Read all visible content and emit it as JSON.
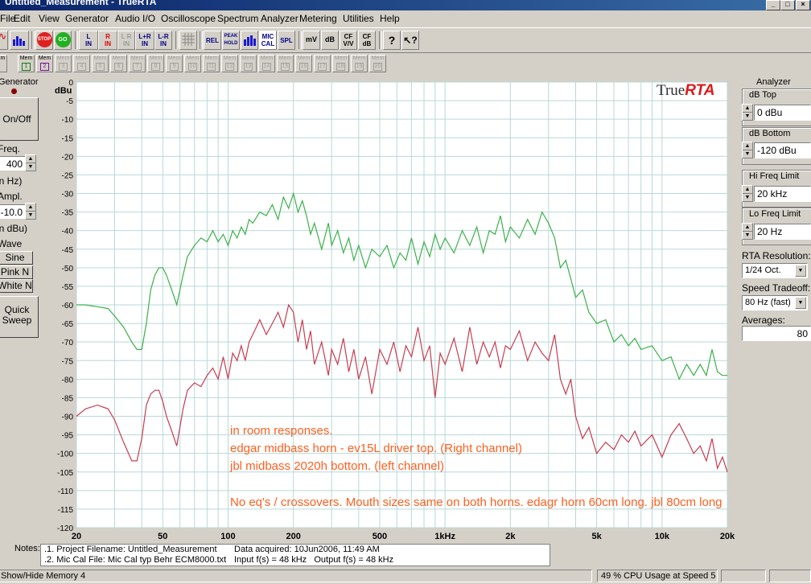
{
  "window": {
    "title": "Untitled_Measurement - TrueRTA"
  },
  "menu": [
    "File",
    "Edit",
    "View",
    "Generator",
    "Audio I/O",
    "Oscilloscope",
    "Spectrum Analyzer",
    "Metering",
    "Utilities",
    "Help"
  ],
  "toolbar": {
    "stop": "STOP",
    "go": "GO",
    "l_in": "L\nIN",
    "r_in": "R\nIN",
    "lr_in": "L R\nIN",
    "lpr_in": "L+R\nIN",
    "lmr_in": "L-R\nIN",
    "rel": "REL",
    "peak_hold": "PEAK\nHOLD",
    "mic_cal": "MIC\nCAL",
    "spl": "SPL",
    "mv": "mV",
    "db": "dB",
    "cf_vv": "CF\nV/V",
    "cf_db": "CF\ndB"
  },
  "memory": {
    "label": "Mem",
    "slots": [
      "1",
      "2",
      "3",
      "4",
      "5",
      "6",
      "7",
      "8",
      "9",
      "10",
      "11",
      "12",
      "13",
      "14",
      "15",
      "16",
      "17",
      "18",
      "19",
      "20"
    ]
  },
  "generator": {
    "title": "Generator",
    "on_off": "On/Off",
    "freq_label": "Freq.",
    "freq_value": "400",
    "freq_unit": "(in Hz)",
    "ampl_label": "Ampl.",
    "ampl_value": "-10.0",
    "ampl_unit": "(in dBu)",
    "wave_label": "Wave",
    "waves": [
      "Sine",
      "Pink N",
      "White N"
    ],
    "quick_sweep": "Quick\nSweep"
  },
  "analyzer": {
    "title": "Analyzer",
    "db_top_label": "dB Top",
    "db_top": "0 dBu",
    "db_bottom_label": "dB Bottom",
    "db_bottom": "-120 dBu",
    "hi_freq_label": "Hi Freq Limit",
    "hi_freq": "20 kHz",
    "lo_freq_label": "Lo Freq Limit",
    "lo_freq": "20 Hz",
    "resolution_label": "RTA Resolution:",
    "resolution": "1/24 Oct.",
    "speed_label": "Speed Tradeoff:",
    "speed": "80 Hz (fast)",
    "averages_label": "Averages:",
    "averages": "80"
  },
  "notes": {
    "label": "Notes:",
    "line1": ".1. Project Filename: Untitled_Measurement",
    "line2": ".2. Mic Cal File: Mic Cal typ Behr ECM8000.txt",
    "acquired": "Data acquired: 10Jun2006, 11:49 AM",
    "input": "Input f(s) = 48 kHz   Output f(s) = 48 kHz"
  },
  "status": {
    "left": "Show/Hide Memory 4",
    "cpu": "49 % CPU Usage at Speed 5"
  },
  "colors": {
    "grid": "#b8d9d8",
    "plot_bg": "#ffffff",
    "green": "#3cb04a",
    "red": "#c83c50",
    "annotation": "#ff6020",
    "logo_red": "#e01818"
  },
  "chart_data": {
    "type": "line",
    "ylabel": "dBu",
    "logo": "TrueRTA",
    "x_scale": "log",
    "xlim": [
      20,
      20000
    ],
    "ylim": [
      -120,
      0
    ],
    "grid": true,
    "x_ticks": [
      "20",
      "50",
      "100",
      "200",
      "500",
      "1kHz",
      "2k",
      "5k",
      "10k",
      "20k"
    ],
    "y_ticks": [
      "0",
      "-5",
      "-10",
      "-15",
      "-20",
      "-25",
      "-30",
      "-35",
      "-40",
      "-45",
      "-50",
      "-55",
      "-60",
      "-65",
      "-70",
      "-75",
      "-80",
      "-85",
      "-90",
      "-95",
      "-100",
      "-105",
      "-110",
      "-115",
      "-120"
    ],
    "annotations": [
      "in room responses.",
      "edgar midbass horn - ev15L driver top. (Right channel)",
      "jbl midbass 2020h bottom. (left channel)",
      "No eq's / crossovers. Mouth sizes same on both horns. edagr horn 60cm long. jbl 80cm long"
    ],
    "series": [
      {
        "color": "#3cb04a",
        "x": [
          20,
          22,
          25,
          28,
          30,
          33,
          36,
          38,
          40,
          42,
          44,
          46,
          48,
          50,
          52,
          55,
          58,
          62,
          65,
          70,
          75,
          80,
          85,
          90,
          95,
          100,
          105,
          110,
          115,
          120,
          125,
          130,
          140,
          150,
          160,
          170,
          180,
          190,
          200,
          210,
          220,
          230,
          240,
          250,
          270,
          290,
          300,
          320,
          340,
          360,
          380,
          400,
          430,
          460,
          500,
          540,
          580,
          620,
          660,
          700,
          750,
          800,
          850,
          900,
          950,
          1000,
          1100,
          1200,
          1300,
          1400,
          1500,
          1600,
          1700,
          1800,
          1900,
          2000,
          2200,
          2400,
          2600,
          2800,
          3000,
          3200,
          3400,
          3600,
          3800,
          4000,
          4300,
          4600,
          5000,
          5500,
          6000,
          6500,
          7000,
          7500,
          8000,
          9000,
          10000,
          11000,
          12000,
          13000,
          14000,
          15000,
          16000,
          17000,
          18000,
          19000,
          20000
        ],
        "y": [
          -60,
          -60,
          -60.5,
          -61,
          -63,
          -66,
          -70,
          -72,
          -72,
          -65,
          -56,
          -52,
          -50,
          -50,
          -52,
          -56,
          -60,
          -52,
          -47,
          -44,
          -42,
          -43,
          -40,
          -43,
          -41,
          -44,
          -40,
          -42,
          -39,
          -41,
          -37,
          -38,
          -35,
          -36,
          -33,
          -37,
          -31,
          -34,
          -30,
          -35,
          -32,
          -36,
          -41,
          -38,
          -45,
          -38,
          -44,
          -40,
          -46,
          -42,
          -48,
          -44,
          -50,
          -45,
          -47,
          -44,
          -50,
          -46,
          -48,
          -42,
          -49,
          -43,
          -47,
          -41,
          -45,
          -42,
          -46,
          -40,
          -44,
          -39,
          -46,
          -40,
          -41,
          -36,
          -43,
          -39,
          -42,
          -37,
          -41,
          -35,
          -38,
          -42,
          -50,
          -48,
          -53,
          -58,
          -56,
          -62,
          -65,
          -64,
          -70,
          -68,
          -71,
          -69,
          -72,
          -71,
          -75,
          -74,
          -80,
          -76,
          -79,
          -76,
          -79,
          -72,
          -78,
          -79,
          -79
        ]
      },
      {
        "color": "#c83c50",
        "x": [
          20,
          22,
          25,
          28,
          30,
          33,
          36,
          38,
          40,
          42,
          44,
          46,
          48,
          50,
          52,
          55,
          58,
          62,
          65,
          70,
          75,
          80,
          85,
          90,
          95,
          100,
          105,
          110,
          115,
          120,
          125,
          130,
          140,
          150,
          160,
          170,
          180,
          190,
          200,
          210,
          220,
          230,
          240,
          250,
          270,
          290,
          300,
          320,
          340,
          360,
          380,
          400,
          430,
          460,
          500,
          540,
          580,
          620,
          660,
          700,
          750,
          800,
          850,
          900,
          950,
          1000,
          1100,
          1200,
          1300,
          1400,
          1500,
          1600,
          1700,
          1800,
          1900,
          2000,
          2200,
          2400,
          2600,
          2800,
          3000,
          3200,
          3400,
          3600,
          3800,
          4000,
          4300,
          4600,
          5000,
          5500,
          6000,
          6500,
          7000,
          7500,
          8000,
          9000,
          10000,
          11000,
          12000,
          13000,
          14000,
          15000,
          16000,
          17000,
          18000,
          19000,
          20000
        ],
        "y": [
          -90,
          -88,
          -87,
          -88,
          -91,
          -97,
          -102,
          -102,
          -96,
          -87,
          -84,
          -83,
          -83,
          -86,
          -90,
          -94,
          -98,
          -88,
          -83,
          -81,
          -82,
          -79,
          -77,
          -80,
          -74,
          -80,
          -73,
          -75,
          -71,
          -75,
          -70,
          -68,
          -64,
          -68,
          -65,
          -62,
          -66,
          -60,
          -62,
          -70,
          -64,
          -72,
          -67,
          -76,
          -70,
          -79,
          -72,
          -76,
          -69,
          -78,
          -72,
          -80,
          -74,
          -84,
          -72,
          -76,
          -70,
          -78,
          -71,
          -74,
          -66,
          -75,
          -71,
          -85,
          -73,
          -76,
          -69,
          -78,
          -66,
          -76,
          -70,
          -74,
          -70,
          -77,
          -71,
          -72,
          -67,
          -75,
          -70,
          -73,
          -75,
          -68,
          -80,
          -84,
          -80,
          -90,
          -96,
          -93,
          -100,
          -97,
          -99,
          -95,
          -97,
          -94,
          -98,
          -95,
          -101,
          -95,
          -92,
          -96,
          -100,
          -98,
          -102,
          -96,
          -104,
          -101,
          -105
        ]
      }
    ]
  }
}
